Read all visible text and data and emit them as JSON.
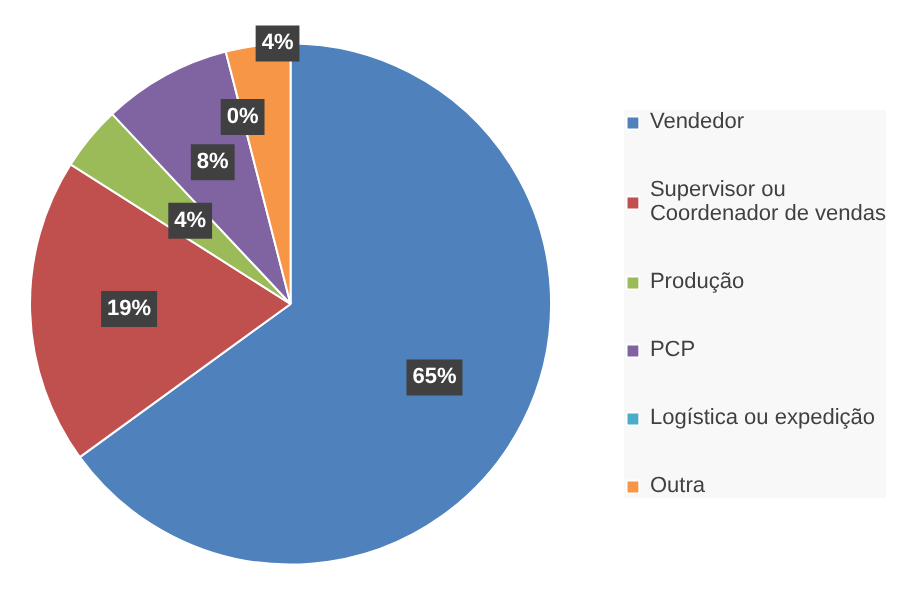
{
  "chart_data": {
    "type": "pie",
    "categories": [
      "Vendedor",
      "Supervisor ou\nCoordenador de vendas",
      "Produção",
      "PCP",
      "Logística ou expedição",
      "Outra"
    ],
    "values": [
      65,
      19,
      4,
      8,
      0,
      4
    ],
    "colors": [
      "#4f81bd",
      "#c0504d",
      "#9bbb59",
      "#8064a2",
      "#4bacc6",
      "#f79646"
    ],
    "value_labels": [
      "65%",
      "19%",
      "4%",
      "8%",
      "0%",
      "4%"
    ],
    "legend": "right"
  }
}
